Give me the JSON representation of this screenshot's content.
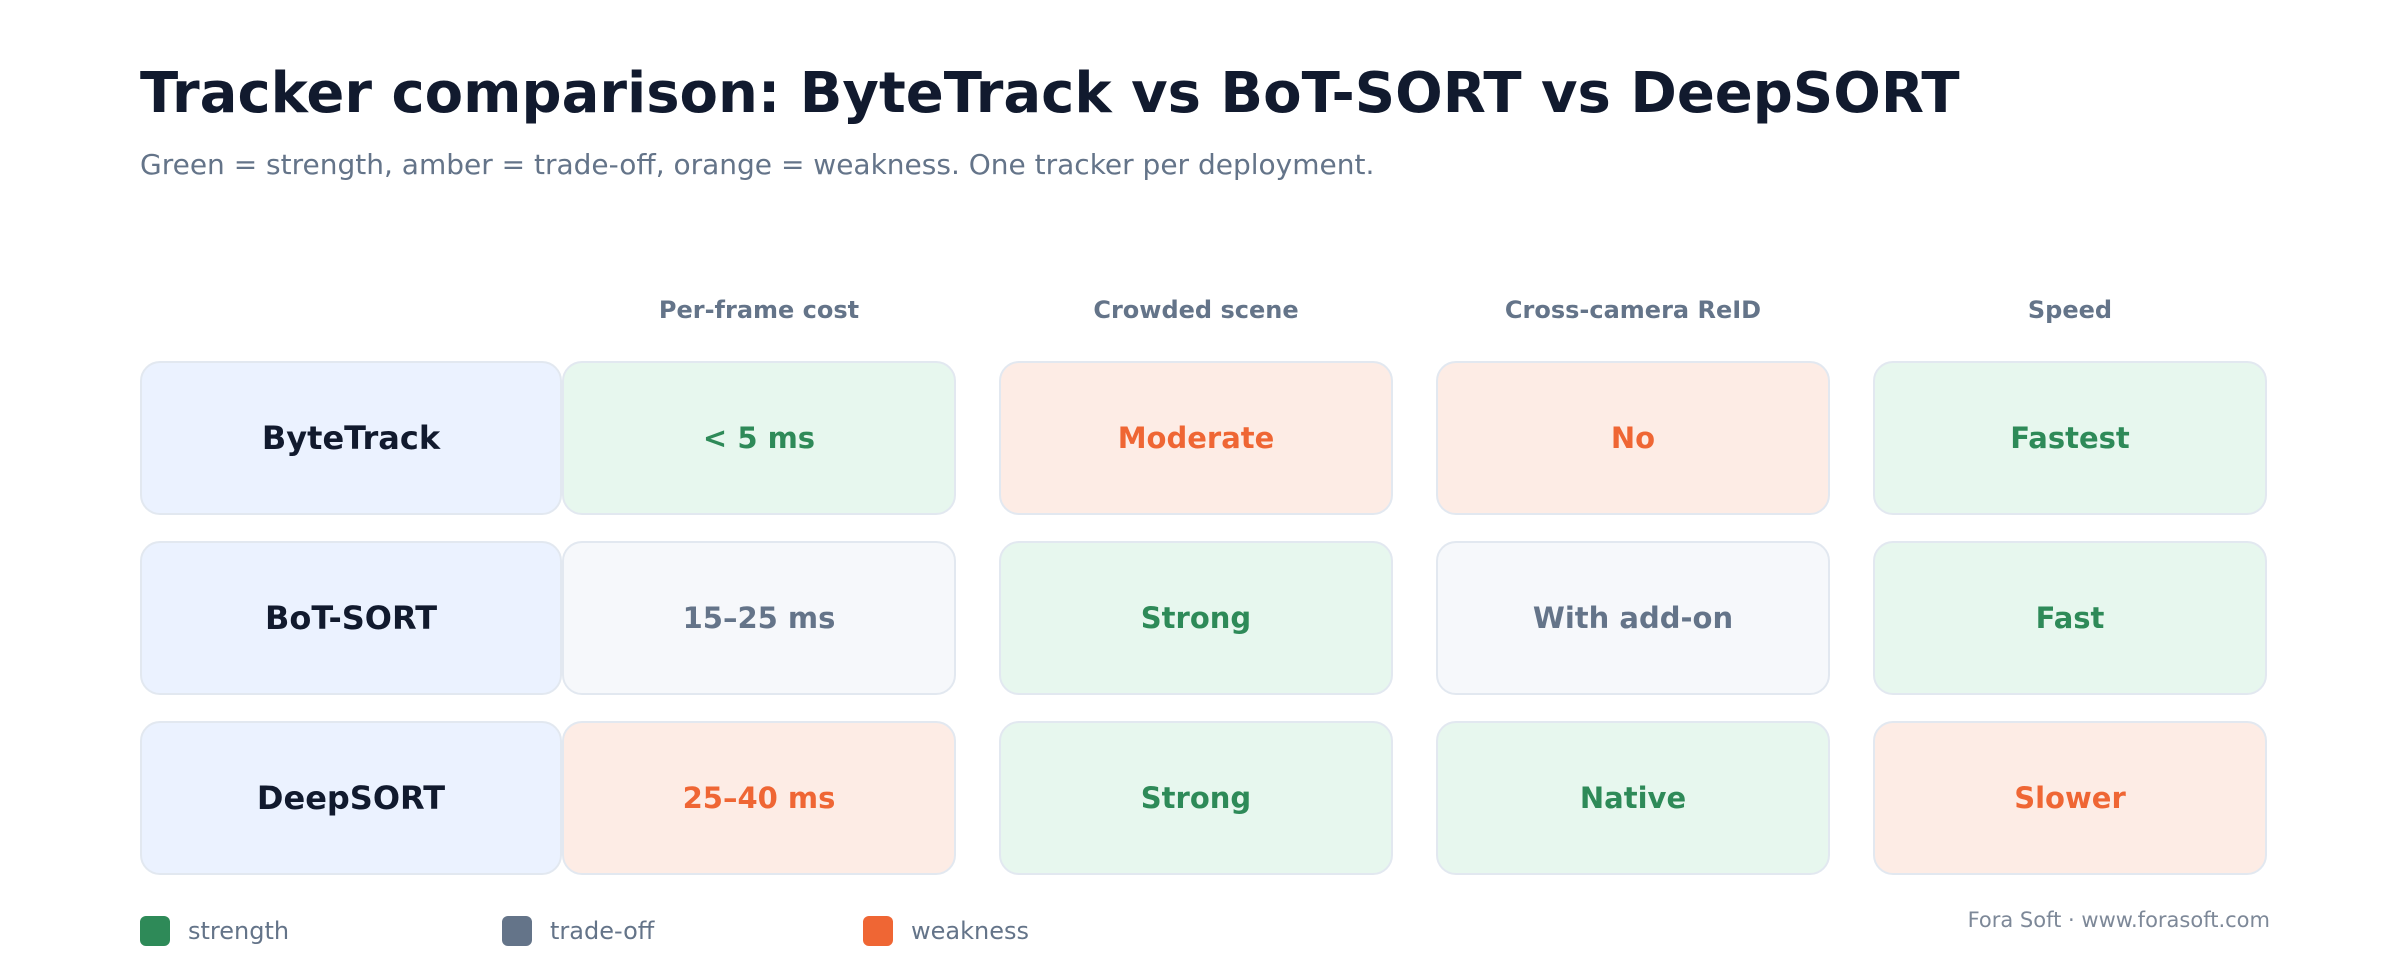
{
  "title": "Tracker comparison: ByteTrack vs BoT-SORT vs DeepSORT",
  "subtitle": "Green = strength, amber = trade-off, orange = weakness. One tracker per deployment.",
  "colors": {
    "strength": "#2e8a58",
    "tradeoff": "#647489",
    "weakness": "#ef6634",
    "strength_bg": "#e7f7ee",
    "tradeoff_bg": "#f6f8fb",
    "weakness_bg": "#fdece5",
    "row_label_bg": "#ebf2ff"
  },
  "columns": [
    "Per-frame cost",
    "Crowded scene",
    "Cross-camera ReID",
    "Speed"
  ],
  "rows": [
    {
      "name": "ByteTrack",
      "cells": [
        {
          "text": "< 5 ms",
          "rating": "strength"
        },
        {
          "text": "Moderate",
          "rating": "weakness"
        },
        {
          "text": "No",
          "rating": "weakness"
        },
        {
          "text": "Fastest",
          "rating": "strength"
        }
      ]
    },
    {
      "name": "BoT-SORT",
      "cells": [
        {
          "text": "15–25 ms",
          "rating": "tradeoff"
        },
        {
          "text": "Strong",
          "rating": "strength"
        },
        {
          "text": "With add-on",
          "rating": "tradeoff"
        },
        {
          "text": "Fast",
          "rating": "strength"
        }
      ]
    },
    {
      "name": "DeepSORT",
      "cells": [
        {
          "text": "25–40 ms",
          "rating": "weakness"
        },
        {
          "text": "Strong",
          "rating": "strength"
        },
        {
          "text": "Native",
          "rating": "strength"
        },
        {
          "text": "Slower",
          "rating": "weakness"
        }
      ]
    }
  ],
  "legend": [
    {
      "label": "strength",
      "color": "#2e8a58"
    },
    {
      "label": "trade-off",
      "color": "#647489"
    },
    {
      "label": "weakness",
      "color": "#ef6634"
    }
  ],
  "footer": "Fora Soft · www.forasoft.com"
}
